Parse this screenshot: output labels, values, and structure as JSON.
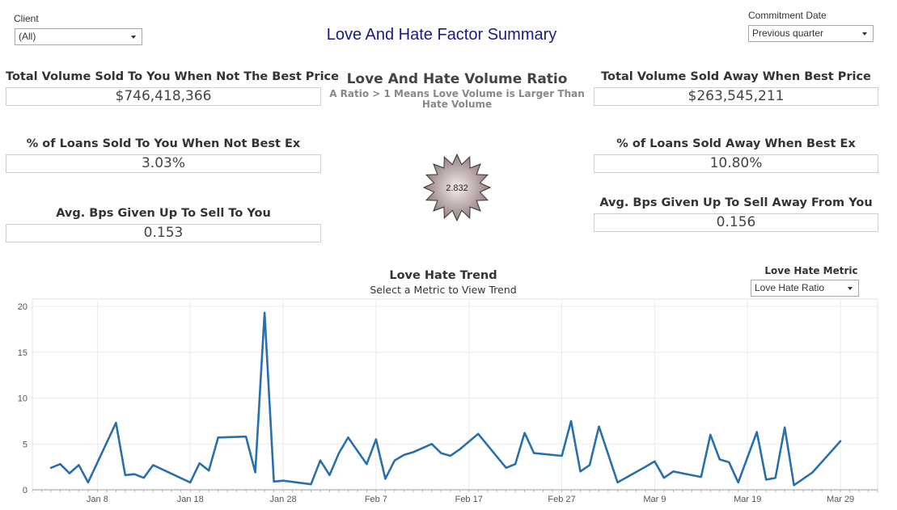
{
  "header": {
    "title": "Love And Hate Factor Summary"
  },
  "filters": {
    "client": {
      "label": "Client",
      "value": "(All)"
    },
    "commitment_date": {
      "label": "Commitment Date",
      "value": "Previous quarter"
    },
    "love_hate_metric": {
      "label": "Love Hate Metric",
      "value": "Love Hate Ratio"
    }
  },
  "left_kpis": [
    {
      "label": "Total Volume Sold To You When Not The Best Price",
      "value": "$746,418,366"
    },
    {
      "label": "% of Loans Sold To You When Not Best Ex",
      "value": "3.03%"
    },
    {
      "label": "Avg. Bps Given Up To Sell To You",
      "value": "0.153"
    }
  ],
  "right_kpis": [
    {
      "label": "Total Volume Sold Away When Best Price",
      "value": "$263,545,211"
    },
    {
      "label": "% of Loans Sold Away When Best Ex",
      "value": "10.80%"
    },
    {
      "label": "Avg. Bps Given Up To Sell Away From You",
      "value": "0.156"
    }
  ],
  "ratio": {
    "title": "Love And Hate Volume Ratio",
    "subtitle": "A Ratio > 1 Means Love Volume is Larger Than Hate Volume",
    "value": "2.832"
  },
  "trend": {
    "title": "Love Hate Trend",
    "subtitle": "Select a Metric to View Trend"
  },
  "colors": {
    "title": "#1a1a80",
    "line": "#2a6fad",
    "badge_fill_light": "#f3eded",
    "badge_fill_dark": "#8c7373"
  },
  "chart_data": {
    "type": "line",
    "title": "Love Hate Trend",
    "xlabel": "",
    "ylabel": "",
    "ylim": [
      0,
      20
    ],
    "yticks": [
      0,
      5,
      10,
      15,
      20
    ],
    "x_tick_labels": [
      "Jan 8",
      "Jan 18",
      "Jan 28",
      "Feb 7",
      "Feb 17",
      "Feb 27",
      "Mar 9",
      "Mar 19",
      "Mar 29"
    ],
    "x_tick_days": [
      7,
      17,
      27,
      37,
      47,
      57,
      67,
      77,
      87
    ],
    "grid": true,
    "series": [
      {
        "x": [
          2,
          3,
          4,
          5,
          6,
          9,
          10,
          11,
          12,
          13,
          17,
          18,
          19,
          20,
          23,
          24,
          25,
          26,
          27,
          30,
          31,
          32,
          33,
          34,
          36,
          37,
          38,
          39,
          40,
          41,
          43,
          44,
          45,
          46,
          48,
          51,
          52,
          53,
          54,
          57,
          58,
          59,
          60,
          61,
          63,
          66,
          67,
          68,
          69,
          70,
          72,
          73,
          74,
          75,
          76,
          78,
          79,
          80,
          81,
          82,
          84
        ],
        "y": [
          2.4,
          2.8,
          1.8,
          2.7,
          0.8,
          7.3,
          1.6,
          1.7,
          1.3,
          2.7,
          0.8,
          2.9,
          2.1,
          5.7,
          5.8,
          1.9,
          19.3,
          0.9,
          1.0,
          0.6,
          3.2,
          1.6,
          4.0,
          5.7,
          2.8,
          5.5,
          1.2,
          3.2,
          3.8,
          4.1,
          5.0,
          4.0,
          3.7,
          4.4,
          6.1,
          2.4,
          2.8,
          6.2,
          4.0,
          3.7,
          7.5,
          2.0,
          2.7,
          6.9,
          0.8,
          2.5,
          3.1,
          1.3,
          2.0,
          1.8,
          1.4,
          6.0,
          3.3,
          3.0,
          0.8,
          6.3,
          1.1,
          1.3,
          6.8,
          0.5,
          1.9
        ]
      }
    ]
  }
}
